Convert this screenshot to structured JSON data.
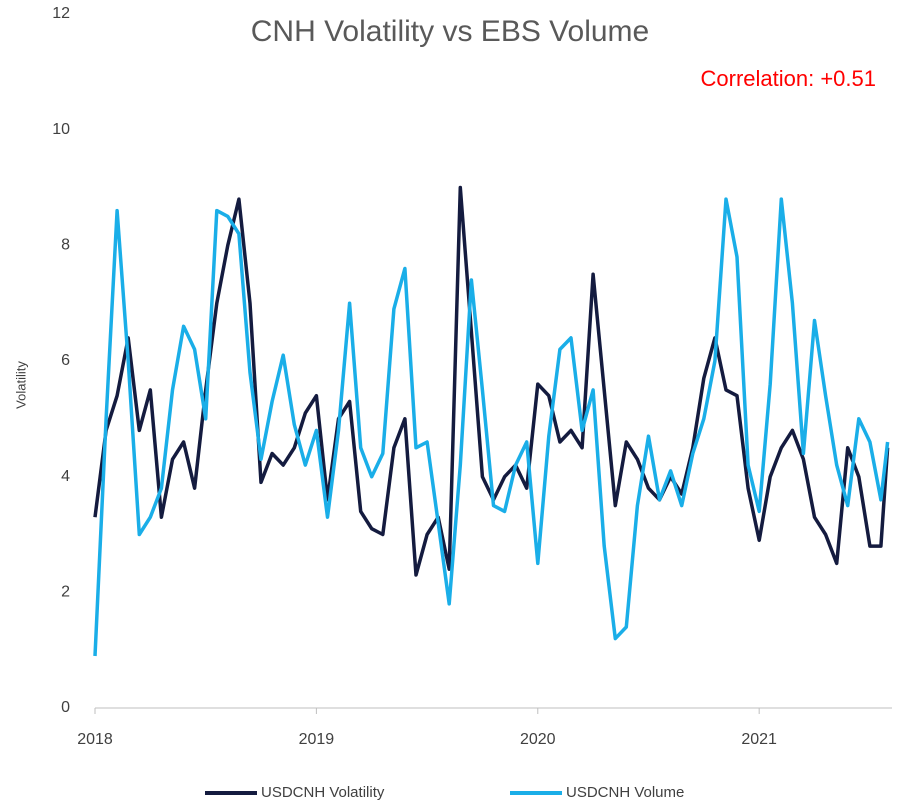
{
  "chart_data": {
    "type": "line",
    "title": "CNH Volatility vs EBS Volume",
    "annotation": "Correlation: +0.51",
    "y_label": "Volatility",
    "x": [
      2018.0,
      2018.05,
      2018.1,
      2018.15,
      2018.2,
      2018.25,
      2018.3,
      2018.35,
      2018.4,
      2018.45,
      2018.5,
      2018.55,
      2018.6,
      2018.65,
      2018.7,
      2018.75,
      2018.8,
      2018.85,
      2018.9,
      2018.95,
      2019.0,
      2019.05,
      2019.1,
      2019.15,
      2019.2,
      2019.25,
      2019.3,
      2019.35,
      2019.4,
      2019.45,
      2019.5,
      2019.55,
      2019.6,
      2019.65,
      2019.7,
      2019.75,
      2019.8,
      2019.85,
      2019.9,
      2019.95,
      2020.0,
      2020.05,
      2020.1,
      2020.15,
      2020.2,
      2020.25,
      2020.3,
      2020.35,
      2020.4,
      2020.45,
      2020.5,
      2020.55,
      2020.6,
      2020.65,
      2020.7,
      2020.75,
      2020.8,
      2020.85,
      2020.9,
      2020.95,
      2021.0,
      2021.05,
      2021.1,
      2021.15,
      2021.2,
      2021.25,
      2021.3,
      2021.35,
      2021.4,
      2021.45,
      2021.5,
      2021.55,
      2021.58
    ],
    "series": [
      {
        "name": "USDCNH Volatility",
        "color": "#141b3f",
        "values": [
          3.3,
          4.8,
          5.4,
          6.4,
          4.8,
          5.5,
          3.3,
          4.3,
          4.6,
          3.8,
          5.5,
          7.0,
          8.0,
          8.8,
          7.0,
          3.9,
          4.4,
          4.2,
          4.5,
          5.1,
          5.4,
          3.6,
          5.0,
          5.3,
          3.4,
          3.1,
          3.0,
          4.5,
          5.0,
          2.3,
          3.0,
          3.3,
          2.4,
          9.0,
          6.5,
          4.0,
          3.6,
          4.0,
          4.2,
          3.8,
          5.6,
          5.4,
          4.6,
          4.8,
          4.5,
          7.5,
          5.5,
          3.5,
          4.6,
          4.3,
          3.8,
          3.6,
          4.0,
          3.7,
          4.5,
          5.7,
          6.4,
          5.5,
          5.4,
          3.8,
          2.9,
          4.0,
          4.5,
          4.8,
          4.3,
          3.3,
          3.0,
          2.5,
          4.5,
          4.0,
          2.8,
          2.8,
          4.5
        ]
      },
      {
        "name": "USDCNH Volume",
        "color": "#1aaee8",
        "values": [
          0.9,
          5.0,
          8.6,
          6.0,
          3.0,
          3.3,
          3.8,
          5.5,
          6.6,
          6.2,
          5.0,
          8.6,
          8.5,
          8.2,
          5.8,
          4.3,
          5.3,
          6.1,
          4.9,
          4.2,
          4.8,
          3.3,
          4.8,
          7.0,
          4.5,
          4.0,
          4.4,
          6.9,
          7.6,
          4.5,
          4.6,
          3.2,
          1.8,
          4.2,
          7.4,
          5.5,
          3.5,
          3.4,
          4.2,
          4.6,
          2.5,
          4.7,
          6.2,
          6.4,
          4.8,
          5.5,
          2.8,
          1.2,
          1.4,
          3.5,
          4.7,
          3.6,
          4.1,
          3.5,
          4.4,
          5.0,
          6.0,
          8.8,
          7.8,
          4.2,
          3.4,
          5.6,
          8.8,
          7.0,
          4.4,
          6.7,
          5.4,
          4.2,
          3.5,
          5.0,
          4.6,
          3.6,
          4.6
        ]
      }
    ],
    "xlim": [
      2018,
      2021.6
    ],
    "xticks": [
      2018,
      2019,
      2020,
      2021
    ],
    "ylim": [
      0,
      12
    ],
    "yticks": [
      0,
      2,
      4,
      6,
      8,
      10,
      12
    ],
    "grid": false,
    "legend": "bottom"
  }
}
